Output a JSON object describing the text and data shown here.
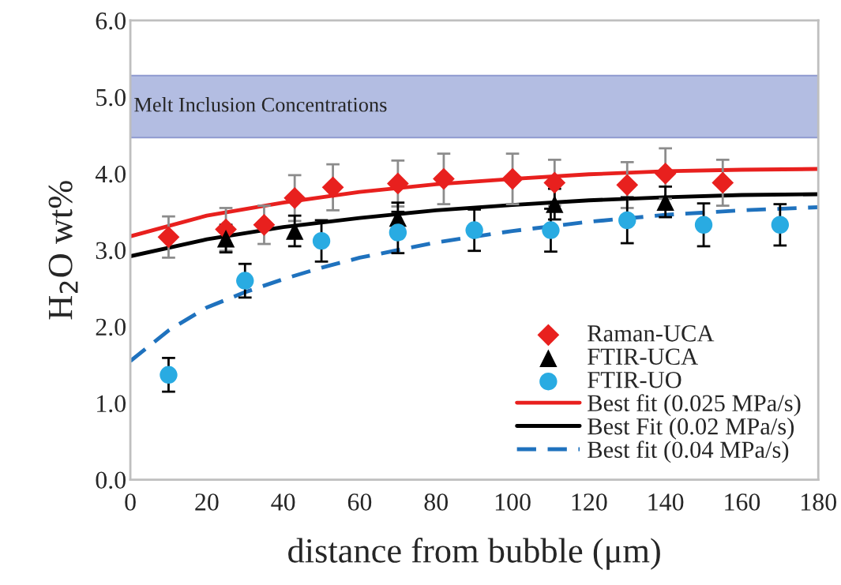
{
  "chart_data": {
    "type": "scatter",
    "xlabel": "distance from bubble (μm)",
    "ylabel": "H$_{2}$O wt%",
    "xlim": [
      0,
      180
    ],
    "xticks": [
      0,
      20,
      40,
      60,
      80,
      100,
      120,
      140,
      160,
      180
    ],
    "ylim": [
      0,
      6
    ],
    "yticks": [
      {
        "value": 0,
        "label": "0.0"
      },
      {
        "value": 1,
        "label": "1.0"
      },
      {
        "value": 2,
        "label": "2.0"
      },
      {
        "value": 3,
        "label": "3.0"
      },
      {
        "value": 4,
        "label": "4.0"
      },
      {
        "value": 5,
        "label": "5.0"
      },
      {
        "value": 6,
        "label": "6.0"
      }
    ],
    "grid": false,
    "legend": "bottom right",
    "bands": [
      {
        "axis": "y",
        "from": 4.47,
        "to": 5.28,
        "label": "Melt Inclusion Concentrations",
        "color": "#b3bde2"
      }
    ],
    "series": [
      {
        "name": "Raman-UCA",
        "marker": "diamond",
        "color": "#e8201e",
        "x": [
          10,
          25,
          35,
          43,
          53,
          70,
          82,
          100,
          111,
          130,
          140,
          155
        ],
        "values": [
          3.17,
          3.27,
          3.33,
          3.68,
          3.82,
          3.87,
          3.93,
          3.93,
          3.88,
          3.85,
          4.0,
          3.88
        ],
        "errors": [
          0.27,
          0.28,
          0.25,
          0.3,
          0.3,
          0.3,
          0.33,
          0.33,
          0.3,
          0.3,
          0.33,
          0.3
        ]
      },
      {
        "name": "FTIR-UCA",
        "marker": "triangle",
        "color": "#000000",
        "x": [
          25,
          43,
          70,
          111,
          140
        ],
        "values": [
          3.15,
          3.25,
          3.42,
          3.6,
          3.63
        ],
        "errors": [
          0.18,
          0.2,
          0.2,
          0.2,
          0.2
        ]
      },
      {
        "name": "FTIR-UO",
        "marker": "circle",
        "color": "#29abe2",
        "x": [
          10,
          30,
          50,
          70,
          90,
          110,
          130,
          150,
          170
        ],
        "values": [
          1.37,
          2.6,
          3.12,
          3.23,
          3.26,
          3.26,
          3.39,
          3.33,
          3.33
        ],
        "errors": [
          0.22,
          0.22,
          0.27,
          0.27,
          0.27,
          0.28,
          0.3,
          0.28,
          0.27
        ]
      },
      {
        "name": "Best fit (0.025 MPa/s)",
        "type": "line",
        "line_style": "solid",
        "color": "#e8201e",
        "x": [
          0,
          20,
          40,
          60,
          80,
          100,
          120,
          140,
          160,
          180
        ],
        "values": [
          3.18,
          3.45,
          3.62,
          3.76,
          3.86,
          3.93,
          3.99,
          4.03,
          4.05,
          4.06
        ]
      },
      {
        "name": "Best Fit (0.02 MPa/s)",
        "type": "line",
        "line_style": "solid",
        "color": "#000000",
        "x": [
          0,
          20,
          40,
          60,
          80,
          100,
          120,
          140,
          160,
          180
        ],
        "values": [
          2.92,
          3.14,
          3.3,
          3.42,
          3.52,
          3.59,
          3.65,
          3.69,
          3.72,
          3.73
        ]
      },
      {
        "name": "Best fit (0.04 MPa/s)",
        "type": "line",
        "line_style": "dashed",
        "color": "#1f72be",
        "x": [
          0,
          10,
          20,
          30,
          40,
          50,
          60,
          80,
          100,
          120,
          140,
          160,
          180
        ],
        "values": [
          1.55,
          1.95,
          2.25,
          2.45,
          2.62,
          2.77,
          2.9,
          3.1,
          3.25,
          3.37,
          3.46,
          3.52,
          3.56
        ]
      }
    ]
  }
}
